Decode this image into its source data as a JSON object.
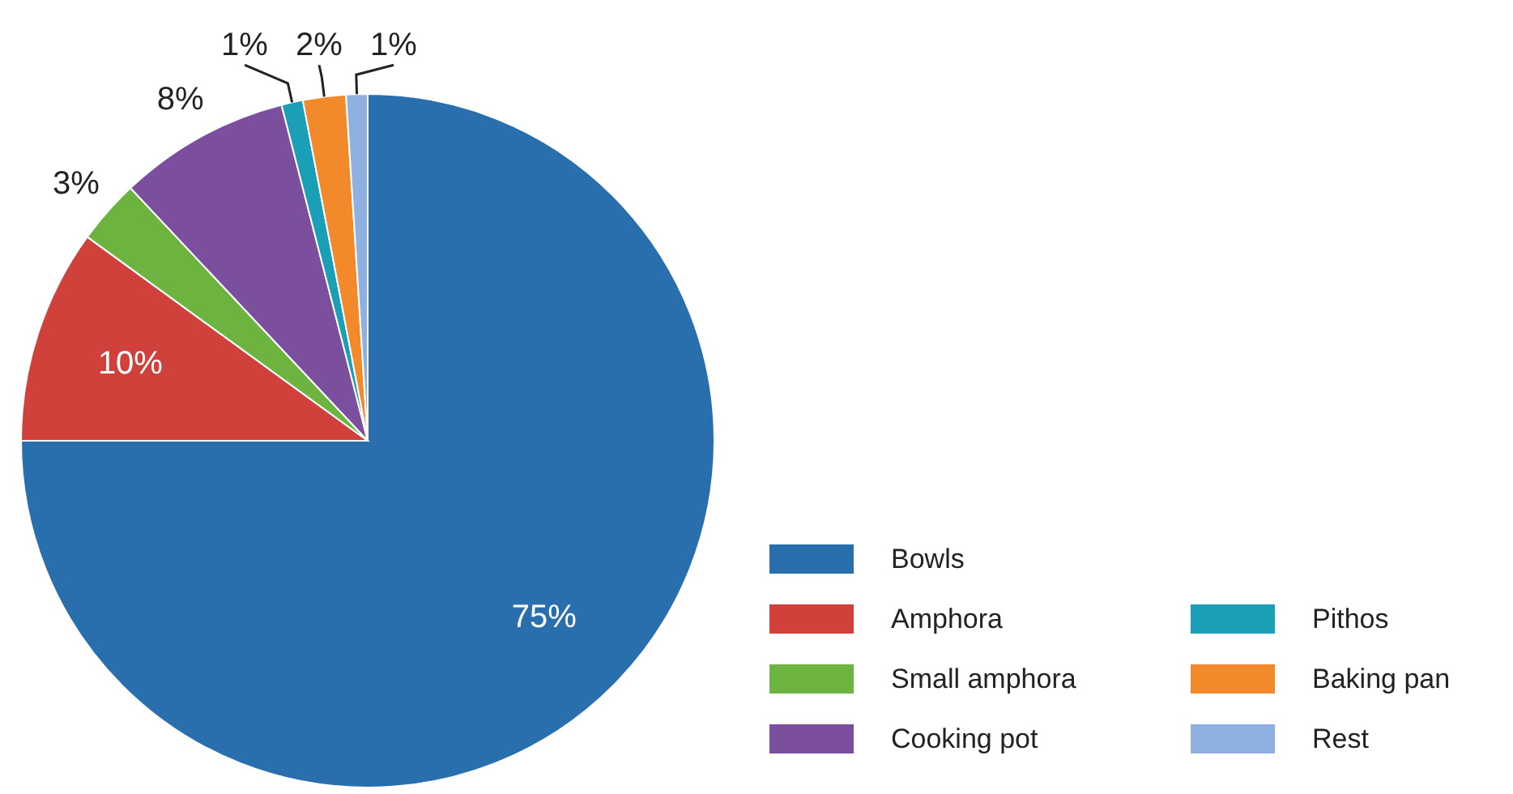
{
  "chart_data": {
    "type": "pie",
    "categories": [
      "Bowls",
      "Amphora",
      "Small amphora",
      "Cooking pot",
      "Pithos",
      "Baking pan",
      "Rest"
    ],
    "values": [
      75,
      10,
      3,
      8,
      1,
      2,
      1
    ],
    "colors": [
      "#2a6fad",
      "#d0413c",
      "#6cb33f",
      "#7b4f9e",
      "#1a9fb6",
      "#f28a2c",
      "#8fb1e2"
    ],
    "value_labels": [
      "75%",
      "10%",
      "3%",
      "8%",
      "1%",
      "2%",
      "1%"
    ],
    "legend": "bottom right"
  }
}
